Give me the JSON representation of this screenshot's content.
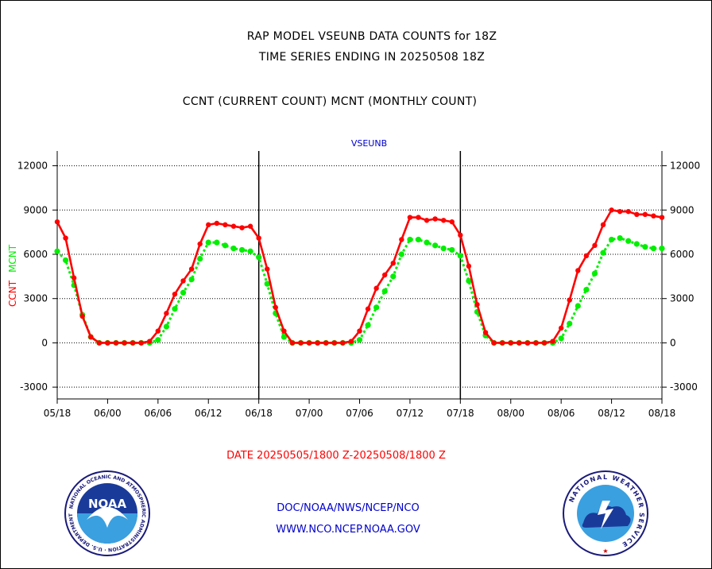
{
  "header": {
    "title_line1": "RAP MODEL VSEUNB DATA COUNTS for 18Z",
    "title_line2": "TIME SERIES ENDING IN 20250508 18Z",
    "subtitle": "CCNT (CURRENT COUNT) MCNT (MONTHLY COUNT)"
  },
  "chart_data": {
    "type": "line",
    "title": "VSEUNB",
    "ylabel_ccnt": "CCNT",
    "ylabel_mcnt": "MCNT",
    "xlabel": "DATE 20250505/1800 Z-20250508/1800 Z",
    "x_tick_labels": [
      "05/18",
      "06/00",
      "06/06",
      "06/12",
      "06/18",
      "07/00",
      "07/06",
      "07/12",
      "07/18",
      "08/00",
      "08/06",
      "08/12",
      "08/18"
    ],
    "y_ticks": [
      -3000,
      0,
      3000,
      6000,
      9000,
      12000
    ],
    "ylim": [
      -3800,
      13000
    ],
    "x_range_hours": [
      0,
      72
    ],
    "grid": true,
    "series": [
      {
        "name": "CCNT",
        "color": "#ff0000",
        "values": [
          8200,
          7100,
          4400,
          1800,
          400,
          0,
          0,
          0,
          0,
          0,
          0,
          100,
          800,
          2000,
          3300,
          4200,
          5000,
          6700,
          8000,
          8100,
          8000,
          7900,
          7800,
          7900,
          7100,
          5000,
          2400,
          800,
          0,
          0,
          0,
          0,
          0,
          0,
          0,
          100,
          800,
          2300,
          3700,
          4600,
          5400,
          7000,
          8500,
          8500,
          8300,
          8400,
          8300,
          8200,
          7300,
          5200,
          2600,
          700,
          0,
          0,
          0,
          0,
          0,
          0,
          0,
          100,
          1000,
          2900,
          4900,
          5900,
          6600,
          8000,
          9000,
          8900,
          8900,
          8700,
          8700,
          8600,
          8500
        ]
      },
      {
        "name": "MCNT",
        "color": "#00ee00",
        "values": [
          6200,
          5600,
          3900,
          1900,
          400,
          0,
          0,
          0,
          0,
          0,
          0,
          0,
          200,
          1100,
          2300,
          3400,
          4300,
          5700,
          6800,
          6800,
          6600,
          6400,
          6300,
          6200,
          5800,
          4000,
          2000,
          400,
          0,
          0,
          0,
          0,
          0,
          0,
          0,
          0,
          200,
          1200,
          2400,
          3500,
          4500,
          6000,
          7000,
          7000,
          6800,
          6600,
          6400,
          6300,
          5900,
          4200,
          2100,
          500,
          0,
          0,
          0,
          0,
          0,
          0,
          0,
          0,
          300,
          1300,
          2500,
          3600,
          4700,
          6100,
          7000,
          7100,
          6900,
          6700,
          6500,
          6400,
          6400
        ]
      }
    ]
  },
  "footer": {
    "line1": "DOC/NOAA/NWS/NCEP/NCO",
    "line2": "WWW.NCO.NCEP.NOAA.GOV"
  },
  "logos": {
    "noaa_text": "NOAA",
    "noaa_ring": "NATIONAL OCEANIC AND ATMOSPHERIC ADMINISTRATION · U.S. DEPARTMENT OF COMMERCE",
    "nws_ring": "NATIONAL WEATHER SERVICE"
  },
  "colors": {
    "ccnt": "#ff0000",
    "mcnt": "#00ee00",
    "series_title": "#0000cc",
    "footer": "#0000cc",
    "caption": "#ff0000"
  }
}
